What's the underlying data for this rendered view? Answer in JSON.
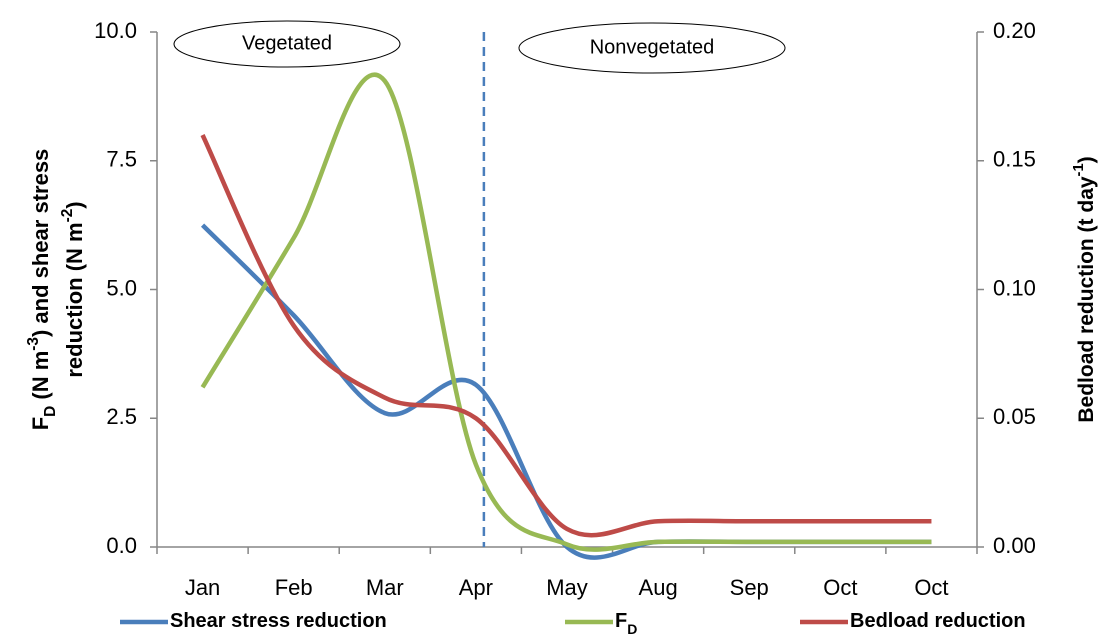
{
  "chart_data": {
    "type": "line",
    "categories": [
      "Jan",
      "Feb",
      "Mar",
      "Apr",
      "May",
      "Aug",
      "Sep",
      "Oct",
      "Oct"
    ],
    "ylim": [
      0,
      10
    ],
    "yticks": [
      {
        "value": 0,
        "label": "0.0"
      },
      {
        "value": 2.5,
        "label": "2.5"
      },
      {
        "value": 5,
        "label": "5.0"
      },
      {
        "value": 7.5,
        "label": "7.5"
      },
      {
        "value": 10,
        "label": "10.0"
      }
    ],
    "y2lim": [
      0,
      0.2
    ],
    "y2ticks": [
      {
        "value": 0,
        "label": "0.00"
      },
      {
        "value": 0.05,
        "label": "0.05"
      },
      {
        "value": 0.1,
        "label": "0.10"
      },
      {
        "value": 0.15,
        "label": "0.15"
      },
      {
        "value": 0.2,
        "label": "0.20"
      }
    ],
    "ylabel": [
      [
        {
          "text": "F"
        },
        {
          "text": "D",
          "sub": true
        },
        {
          "text": " (N m"
        },
        {
          "text": "-3",
          "sup": true
        },
        {
          "text": ") and shear stress"
        }
      ],
      [
        {
          "text": "reduction (N m"
        },
        {
          "text": "-2",
          "sup": true
        },
        {
          "text": ")"
        }
      ]
    ],
    "y2label": [
      {
        "text": "Bedload reduction (t day"
      },
      {
        "text": "-1",
        "sup": true
      },
      {
        "text": ")"
      }
    ],
    "annotations": [
      {
        "text": "Vegetated"
      },
      {
        "text": "Nonvegetated"
      }
    ],
    "divider_category": "Apr",
    "series": [
      {
        "name": [
          {
            "text": "Shear stress reduction"
          }
        ],
        "color": "#4a7ebb",
        "values": [
          6.25,
          4.5,
          2.6,
          3.15,
          0,
          0.1,
          0.1,
          0.1,
          0.1
        ]
      },
      {
        "name": [
          {
            "text": "F"
          },
          {
            "text": "D",
            "sub": true
          }
        ],
        "color": "#98b954",
        "values": [
          3.1,
          6.0,
          9.05,
          1.6,
          0.05,
          0.1,
          0.1,
          0.1,
          0.1
        ]
      },
      {
        "name": [
          {
            "text": "Bedload reduction"
          }
        ],
        "color": "#be4b48",
        "axis": "y2",
        "values": [
          0.16,
          0.086,
          0.058,
          0.05,
          0.007,
          0.01,
          0.01,
          0.01,
          0.01
        ]
      }
    ]
  }
}
